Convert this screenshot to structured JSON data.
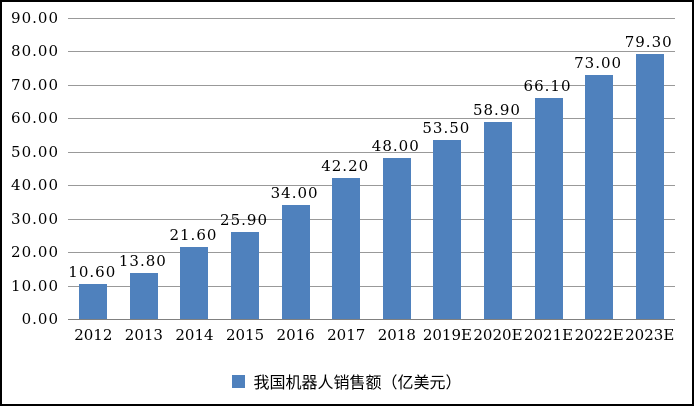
{
  "chart_data": {
    "type": "bar",
    "title": "",
    "categories": [
      "2012",
      "2013",
      "2014",
      "2015",
      "2016",
      "2017",
      "2018",
      "2019E",
      "2020E",
      "2021E",
      "2022E",
      "2023E"
    ],
    "series": [
      {
        "name": "我国机器人销售额（亿美元）",
        "values": [
          10.6,
          13.8,
          21.6,
          25.9,
          34.0,
          42.2,
          48.0,
          53.5,
          58.9,
          66.1,
          73.0,
          79.3
        ]
      }
    ],
    "value_labels": [
      "10.60",
      "13.80",
      "21.60",
      "25.90",
      "34.00",
      "42.20",
      "48.00",
      "53.50",
      "58.90",
      "66.10",
      "73.00",
      "79.30"
    ],
    "y_ticks": [
      "0.00",
      "10.00",
      "20.00",
      "30.00",
      "40.00",
      "50.00",
      "60.00",
      "70.00",
      "80.00",
      "90.00"
    ],
    "ylim": [
      0,
      90
    ],
    "xlabel": "",
    "ylabel": "",
    "grid": true,
    "legend_position": "bottom",
    "legend_label": "我国机器人销售额（亿美元）",
    "bar_color": "#4F81BD",
    "gridline_color": "#999999",
    "axis_line_color": "#808080"
  }
}
